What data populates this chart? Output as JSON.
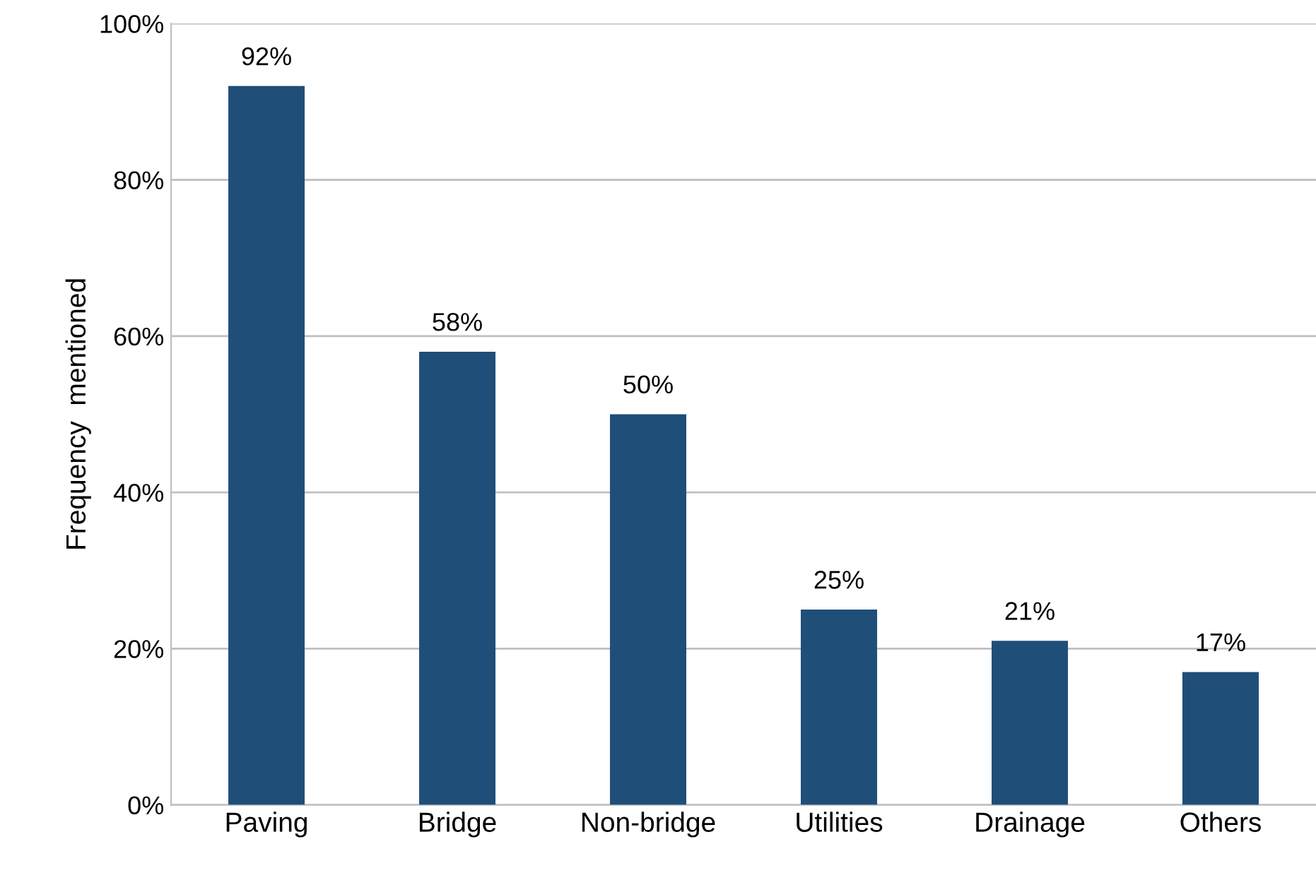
{
  "chart_data": {
    "type": "bar",
    "ylabel": "Frequency  mentioned",
    "categories": [
      "Paving",
      "Bridge",
      "Non-bridge",
      "Utilities",
      "Drainage",
      "Others"
    ],
    "values": [
      92,
      58,
      50,
      25,
      21,
      17
    ],
    "value_labels": [
      "92%",
      "58%",
      "50%",
      "25%",
      "21%",
      "17%"
    ],
    "color": "#1f4e79",
    "ylim": [
      0,
      100
    ],
    "yticks": [
      {
        "value": 0,
        "label": "0%"
      },
      {
        "value": 20,
        "label": "20%"
      },
      {
        "value": 40,
        "label": "40%"
      },
      {
        "value": 60,
        "label": "60%"
      },
      {
        "value": 80,
        "label": "80%"
      },
      {
        "value": 100,
        "label": "100%"
      }
    ],
    "grid": "y"
  }
}
